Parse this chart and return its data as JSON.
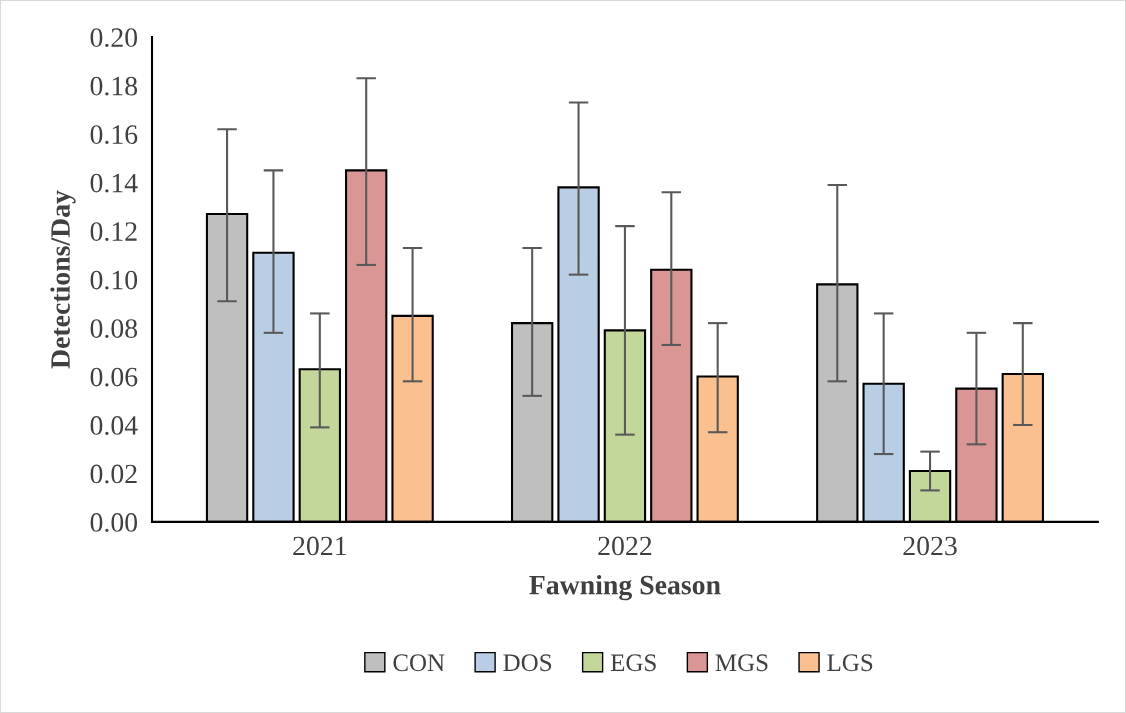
{
  "chart_data": {
    "type": "bar",
    "xlabel": "Fawning Season",
    "ylabel": "Detections/Day",
    "categories": [
      "2021",
      "2022",
      "2023"
    ],
    "ylim": [
      0,
      0.2
    ],
    "yticks": [
      {
        "value": 0,
        "label": "0.00"
      },
      {
        "value": 0.02,
        "label": "0.02"
      },
      {
        "value": 0.04,
        "label": "0.04"
      },
      {
        "value": 0.06,
        "label": "0.06"
      },
      {
        "value": 0.08,
        "label": "0.08"
      },
      {
        "value": 0.1,
        "label": "0.10"
      },
      {
        "value": 0.12,
        "label": "0.12"
      },
      {
        "value": 0.14,
        "label": "0.14"
      },
      {
        "value": 0.16,
        "label": "0.16"
      },
      {
        "value": 0.18,
        "label": "0.18"
      },
      {
        "value": 0.2,
        "label": "0.20"
      }
    ],
    "grid": false,
    "legend": "bottom",
    "series": [
      {
        "name": "CON",
        "color": "#bfbfbf",
        "values": [
          0.127,
          0.082,
          0.098
        ],
        "errors": [
          [
            0.091,
            0.162
          ],
          [
            0.052,
            0.113
          ],
          [
            0.058,
            0.139
          ]
        ]
      },
      {
        "name": "DOS",
        "color": "#b9cde4",
        "values": [
          0.111,
          0.138,
          0.057
        ],
        "errors": [
          [
            0.078,
            0.145
          ],
          [
            0.102,
            0.173
          ],
          [
            0.028,
            0.086
          ]
        ]
      },
      {
        "name": "EGS",
        "color": "#c4d79b",
        "values": [
          0.063,
          0.079,
          0.021
        ],
        "errors": [
          [
            0.039,
            0.086
          ],
          [
            0.036,
            0.122
          ],
          [
            0.013,
            0.029
          ]
        ]
      },
      {
        "name": "MGS",
        "color": "#da9694",
        "values": [
          0.145,
          0.104,
          0.055
        ],
        "errors": [
          [
            0.106,
            0.183
          ],
          [
            0.073,
            0.136
          ],
          [
            0.032,
            0.078
          ]
        ]
      },
      {
        "name": "LGS",
        "color": "#fac090",
        "values": [
          0.085,
          0.06,
          0.061
        ],
        "errors": [
          [
            0.058,
            0.113
          ],
          [
            0.037,
            0.082
          ],
          [
            0.04,
            0.082
          ]
        ]
      }
    ]
  }
}
